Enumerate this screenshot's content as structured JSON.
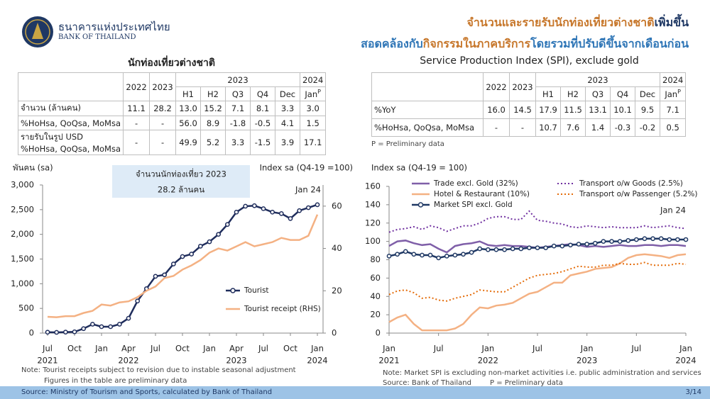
{
  "header": {
    "bank_th": "ธนาคารแห่งประเทศไทย",
    "bank_en": "BANK OF THAILAND",
    "title_line1": [
      {
        "text": "จำนวนและรายรับนักท่องเที่ยวต่างชาติ",
        "color": "#c7772b"
      },
      {
        "text": "เพิ่มขึ้น",
        "color": "#1f3864"
      }
    ],
    "title_line2": [
      {
        "text": "สอดคล้องกับ",
        "color": "#2e75b6"
      },
      {
        "text": "กิจกรรมในภาคบริการ",
        "color": "#c7772b"
      },
      {
        "text": "โดยรวมที่ปรับดีขึ้นจากเดือนก่อน",
        "color": "#2e75b6"
      }
    ]
  },
  "tables": [
    {
      "title": "นักท่องเที่ยวต่างชาติ",
      "header_top": [
        "2022",
        "2023",
        "2023",
        "2024"
      ],
      "header_sub": [
        "H1",
        "H2",
        "Q3",
        "Q4",
        "Dec",
        "Jan"
      ],
      "sub_mark": "P",
      "rows": [
        [
          "จำนวน (ล้านคน)",
          "11.1",
          "28.2",
          "13.0",
          "15.2",
          "7.1",
          "8.1",
          "3.3",
          "3.0"
        ],
        [
          " %HoHsa, QoQsa, MoMsa",
          "-",
          "-",
          "56.0",
          "8.9",
          "-1.8",
          "-0.5",
          "4.1",
          "1.5"
        ],
        [
          [
            "รายรับในรูป USD",
            "%HoHsa, QoQsa, MoMsa"
          ],
          "-",
          "-",
          "49.9",
          "5.2",
          "3.3",
          "-1.5",
          "3.9",
          "17.1"
        ]
      ]
    },
    {
      "title": "Service Production Index (SPI), exclude gold",
      "header_top": [
        "2022",
        "2023",
        "2023",
        "2024"
      ],
      "header_sub": [
        "H1",
        "H2",
        "Q3",
        "Q4",
        "Dec",
        "Jan"
      ],
      "sub_mark": "P",
      "rows": [
        [
          "%YoY",
          "16.0",
          "14.5",
          "17.9",
          "11.5",
          "13.1",
          "10.1",
          "9.5",
          "7.1"
        ],
        [
          "%HoHsa, QoQsa, MoMsa",
          "-",
          "-",
          "10.7",
          "7.6",
          "1.4",
          "-0.3",
          "-0.2",
          "0.5"
        ]
      ],
      "note": "P = Preliminary data"
    }
  ],
  "chart_data": [
    {
      "type": "line",
      "y_label": "พันคน (sa)",
      "y2_label": "Index sa (Q4-19 =100)",
      "callout": [
        "จำนวนนักท่องเที่ยว 2023",
        "28.2 ล้านคน"
      ],
      "annotations": [
        "Jan 24"
      ],
      "categories": [
        "Jul",
        null,
        null,
        "Oct",
        null,
        null,
        "Jan",
        null,
        null,
        "Apr",
        null,
        null,
        "Jul",
        null,
        null,
        "Oct",
        null,
        null,
        "Jan",
        null,
        null,
        "Apr",
        null,
        null,
        "Jul",
        null,
        null,
        "Oct",
        null,
        null,
        "Jan"
      ],
      "category_years": [
        "2021",
        null,
        null,
        null,
        null,
        null,
        null,
        null,
        null,
        "2022",
        null,
        null,
        null,
        null,
        null,
        null,
        null,
        null,
        null,
        null,
        null,
        "2023",
        null,
        null,
        null,
        null,
        null,
        null,
        null,
        null,
        "2024"
      ],
      "ylim": [
        0,
        3000
      ],
      "yticks": [
        0,
        500,
        {
          "value": 1000,
          "label": "1,000"
        },
        {
          "value": 1500,
          "label": "1,500"
        },
        {
          "value": 2000,
          "label": "2,000"
        },
        {
          "value": 2500,
          "label": "2,500"
        },
        {
          "value": 3000,
          "label": "3,000"
        }
      ],
      "y2lim": [
        0,
        70
      ],
      "y2ticks": [
        0,
        20,
        40,
        60
      ],
      "series": [
        {
          "name": "Tourist",
          "color": "#1f2d5c",
          "dash": "solid",
          "marker": "circle",
          "values": [
            18,
            15,
            20,
            25,
            90,
            180,
            130,
            130,
            180,
            300,
            650,
            900,
            1150,
            1180,
            1400,
            1550,
            1600,
            1760,
            1850,
            2000,
            2200,
            2450,
            2570,
            2580,
            2520,
            2450,
            2420,
            2320,
            2480,
            2540,
            2600
          ]
        },
        {
          "name": "Tourist receipt (RHS)",
          "color": "#f4b183",
          "dash": "solid",
          "marker": null,
          "axis": "y2",
          "values": [
            7.7,
            7.5,
            8,
            8,
            9.5,
            10.5,
            13.5,
            13,
            14.5,
            15,
            17,
            20,
            22,
            26,
            27,
            30,
            32,
            34.5,
            38,
            40,
            39,
            41,
            43,
            41,
            42,
            43,
            45,
            44,
            44,
            46,
            56
          ]
        }
      ]
    },
    {
      "type": "line",
      "y_label": "Index sa (Q4-19 = 100)",
      "annotations": [
        "Jan 24"
      ],
      "categories": [
        "Jan",
        null,
        null,
        null,
        null,
        null,
        "Jul",
        null,
        null,
        null,
        null,
        null,
        "Jan",
        null,
        null,
        null,
        null,
        null,
        "Jul",
        null,
        null,
        null,
        null,
        null,
        "Jan",
        null,
        null,
        null,
        null,
        null,
        "Jul",
        null,
        null,
        null,
        null,
        null,
        "Jan"
      ],
      "category_years": [
        "2021",
        null,
        null,
        null,
        null,
        null,
        null,
        null,
        null,
        null,
        null,
        null,
        "2022",
        null,
        null,
        null,
        null,
        null,
        null,
        null,
        null,
        null,
        null,
        null,
        "2023",
        null,
        null,
        null,
        null,
        null,
        null,
        null,
        null,
        null,
        null,
        null,
        "2024"
      ],
      "ylim": [
        0,
        160
      ],
      "yticks": [
        0,
        20,
        40,
        60,
        80,
        100,
        120,
        140,
        160
      ],
      "series": [
        {
          "name": "Trade excl. Gold (32%)",
          "color": "#7f5fa8",
          "dash": "solid",
          "marker": null,
          "values": [
            95,
            100,
            101,
            98,
            96,
            97,
            92,
            88,
            95,
            97,
            98,
            100,
            96,
            95,
            96,
            95,
            95,
            94,
            93,
            94,
            95,
            96,
            97,
            96,
            94,
            95,
            94,
            95,
            96,
            95,
            95,
            96,
            96,
            95,
            96,
            96,
            95
          ]
        },
        {
          "name": "Hotel & Restaurant (10%)",
          "color": "#f4b183",
          "dash": "solid",
          "marker": null,
          "values": [
            12,
            17,
            20,
            10,
            3,
            3,
            3,
            3,
            5,
            10,
            20,
            28,
            27,
            30,
            31,
            33,
            38,
            43,
            45,
            50,
            55,
            55,
            63,
            65,
            67,
            70,
            71,
            72,
            76,
            82,
            85,
            86,
            85,
            84,
            82,
            85,
            86
          ]
        },
        {
          "name": "Transport o/w Goods (2.5%)",
          "color": "#7030a0",
          "dash": "dotted",
          "marker": null,
          "values": [
            110,
            113,
            114,
            116,
            113,
            117,
            115,
            111,
            114,
            117,
            117,
            120,
            125,
            127,
            127,
            124,
            124,
            133,
            123,
            122,
            120,
            119,
            116,
            115,
            117,
            116,
            115,
            116,
            115,
            115,
            115,
            117,
            115,
            116,
            117,
            115,
            114
          ]
        },
        {
          "name": "Transport o/w Passenger (5.2%)",
          "color": "#e46c0a",
          "dash": "dotted",
          "marker": null,
          "values": [
            42,
            46,
            47,
            44,
            38,
            39,
            36,
            35,
            38,
            40,
            42,
            47,
            46,
            45,
            45,
            50,
            55,
            60,
            63,
            64,
            65,
            67,
            70,
            73,
            72,
            72,
            74,
            74,
            76,
            75,
            75,
            77,
            74,
            74,
            74,
            76,
            75
          ]
        },
        {
          "name": "Market SPI excl. Gold",
          "color": "#1f3864",
          "dash": "solid",
          "marker": "circle",
          "values": [
            84,
            86,
            89,
            86,
            85,
            85,
            82,
            84,
            85,
            86,
            88,
            92,
            91,
            91,
            91,
            92,
            92,
            93,
            93,
            93,
            95,
            95,
            96,
            97,
            97,
            98,
            100,
            100,
            100,
            101,
            102,
            103,
            103,
            103,
            102,
            102,
            102
          ]
        }
      ]
    }
  ],
  "footer": {
    "left_notes": [
      "Note: Tourist receipts subject to revision due to instable seasonal adjustment",
      "Figures in the table are preliminary data"
    ],
    "right_notes": [
      "Note: Market SPI is excluding non-market activities i.e. public administration and services",
      "Source: Bank of Thailand",
      "P = Preliminary data"
    ],
    "source": "Source: Ministry of Tourism and Sports, calculated by Bank of Thailand",
    "page": "3/14"
  }
}
